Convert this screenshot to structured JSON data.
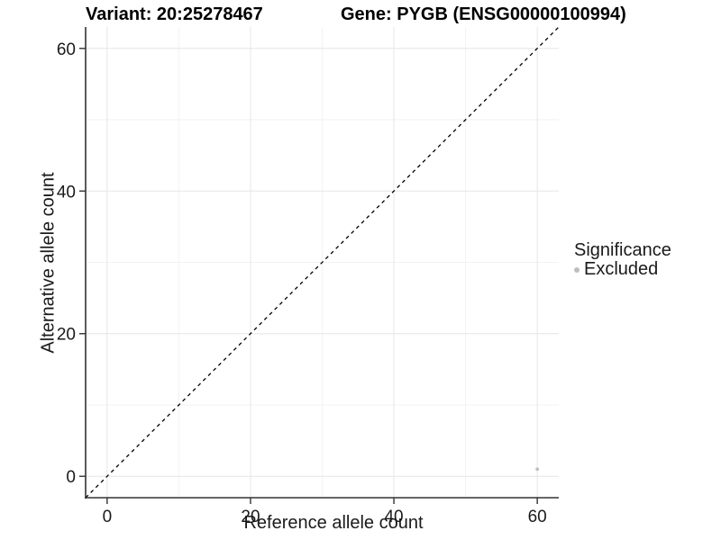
{
  "titles": {
    "variant": "Variant: 20:25278467",
    "gene": "Gene: PYGB (ENSG00000100994)"
  },
  "chart_data": {
    "type": "scatter",
    "title": "Variant: 20:25278467   Gene: PYGB (ENSG00000100994)",
    "xlabel": "Reference allele count",
    "ylabel": "Alternative allele count",
    "xlim": [
      -3,
      63
    ],
    "ylim": [
      -3,
      63
    ],
    "x_ticks": [
      0,
      20,
      40,
      60
    ],
    "y_ticks": [
      0,
      20,
      40,
      60
    ],
    "minor_ticks": [
      10,
      30,
      50
    ],
    "grid": true,
    "identity_line": {
      "style": "dashed",
      "from": [
        -3,
        -3
      ],
      "to": [
        63,
        63
      ],
      "color": "#000000"
    },
    "series": [
      {
        "name": "Excluded",
        "color": "#bebebe",
        "points": [
          {
            "x": 60,
            "y": 1
          }
        ]
      }
    ],
    "legend": {
      "title": "Significance",
      "position": "right",
      "items": [
        {
          "label": "Excluded",
          "color": "#bebebe",
          "marker": "circle"
        }
      ]
    }
  },
  "colors": {
    "background": "#ffffff",
    "axis_line": "#333333",
    "tick_label": "#1a1a1a",
    "grid_major": "#e6e6e6",
    "grid_minor": "#f2f2f2",
    "point": "#bebebe",
    "title_text": "#000000"
  }
}
